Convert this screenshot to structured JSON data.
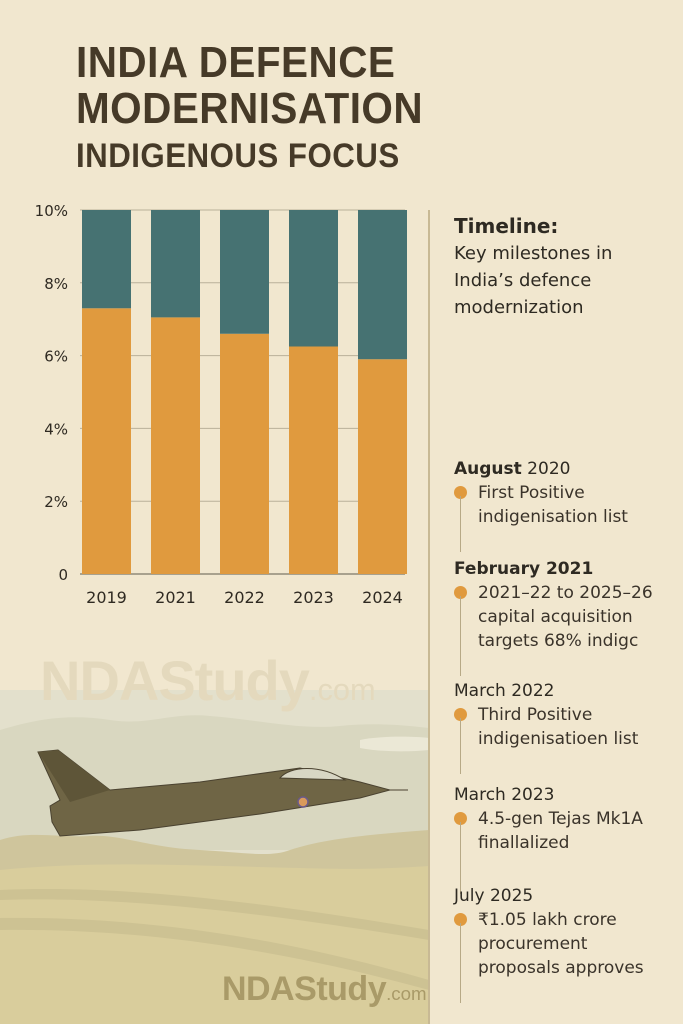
{
  "title": {
    "line1": "INDIA DEFENCE",
    "line2": "MODERNISATION",
    "line3": "INDIGENOUS FOCUS"
  },
  "colors": {
    "background": "#f1e7cf",
    "title": "#463a28",
    "orange": "#e09a3e",
    "teal": "#467272",
    "dot": "#e09a3e"
  },
  "chart_data": {
    "type": "bar",
    "stacked": true,
    "title": "",
    "xlabel": "",
    "ylabel": "",
    "categories": [
      "2019",
      "2021",
      "2022",
      "2023",
      "2024"
    ],
    "series": [
      {
        "name": "lower (orange)",
        "color": "#e09a3e",
        "values": [
          7.3,
          7.05,
          6.6,
          6.25,
          5.9
        ]
      },
      {
        "name": "upper (teal)",
        "color": "#467272",
        "values": [
          2.7,
          2.95,
          3.4,
          3.75,
          4.1
        ]
      }
    ],
    "ylim": [
      0,
      10
    ],
    "yticks": [
      0,
      2,
      4,
      6,
      8,
      10
    ],
    "ytick_labels": [
      "0",
      "2%",
      "4%",
      "6%",
      "8%",
      "10%"
    ],
    "grid": true,
    "legend": "none"
  },
  "timeline": {
    "heading": "Timeline:",
    "subtitle_lines": [
      "Key milestones in",
      "India’s defence",
      "modernization"
    ],
    "events": [
      {
        "date_bold": "August",
        "date_rest": " 2020",
        "lines": [
          "First Positive",
          "indigenisation list"
        ]
      },
      {
        "date_bold": "February 2021",
        "date_rest": "",
        "lines": [
          "2021–22 to 2025–26",
          "capital acquisition",
          "targets 68% indigc"
        ]
      },
      {
        "date_bold": "",
        "date_rest": "March 2022",
        "lines": [
          "Third Positive",
          "indigenisatioen list"
        ]
      },
      {
        "date_bold": "",
        "date_rest": "March 2023",
        "lines": [
          "4.5-gen Tejas Mk1A",
          "finallalized"
        ]
      },
      {
        "date_bold": "",
        "date_rest": "July 2025",
        "lines": [
          "₹1.05 lakh crore",
          "procurement",
          "proposals approves"
        ]
      }
    ]
  },
  "watermark": {
    "brand": "NDAStudy",
    "suffix": ".com"
  },
  "illustration": {
    "subject": "fighter jet over hilly landscape"
  }
}
